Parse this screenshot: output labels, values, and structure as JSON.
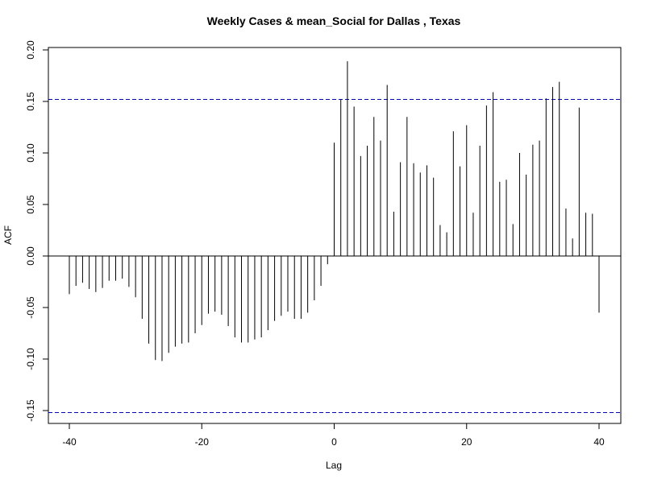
{
  "chart_data": {
    "type": "bar",
    "title": "Weekly Cases & mean_Social for Dallas , Texas",
    "xlabel": "Lag",
    "ylabel": "ACF",
    "xlim": [
      -40,
      40
    ],
    "ylim": [
      -0.15,
      0.2
    ],
    "x_ticks": [
      "-40",
      "-20",
      "0",
      "20",
      "40"
    ],
    "y_ticks": [
      "-0.15",
      "-0.10",
      "-0.05",
      "0.00",
      "0.05",
      "0.10",
      "0.15",
      "0.20"
    ],
    "confidence_bound": 0.152,
    "lags": [
      -40,
      -39,
      -38,
      -37,
      -36,
      -35,
      -34,
      -33,
      -32,
      -31,
      -30,
      -29,
      -28,
      -27,
      -26,
      -25,
      -24,
      -23,
      -22,
      -21,
      -20,
      -19,
      -18,
      -17,
      -16,
      -15,
      -14,
      -13,
      -12,
      -11,
      -10,
      -9,
      -8,
      -7,
      -6,
      -5,
      -4,
      -3,
      -2,
      -1,
      0,
      1,
      2,
      3,
      4,
      5,
      6,
      7,
      8,
      9,
      10,
      11,
      12,
      13,
      14,
      15,
      16,
      17,
      18,
      19,
      20,
      21,
      22,
      23,
      24,
      25,
      26,
      27,
      28,
      29,
      30,
      31,
      32,
      33,
      34,
      35,
      36,
      37,
      38,
      39,
      40
    ],
    "values": [
      -0.037,
      -0.029,
      -0.026,
      -0.032,
      -0.035,
      -0.031,
      -0.024,
      -0.024,
      -0.022,
      -0.03,
      -0.04,
      -0.061,
      -0.085,
      -0.101,
      -0.102,
      -0.094,
      -0.088,
      -0.085,
      -0.084,
      -0.075,
      -0.067,
      -0.056,
      -0.054,
      -0.057,
      -0.068,
      -0.079,
      -0.084,
      -0.084,
      -0.081,
      -0.079,
      -0.072,
      -0.063,
      -0.058,
      -0.054,
      -0.061,
      -0.061,
      -0.055,
      -0.043,
      -0.029,
      -0.008,
      0.11,
      0.152,
      0.189,
      0.145,
      0.097,
      0.107,
      0.135,
      0.112,
      0.166,
      0.043,
      0.091,
      0.135,
      0.09,
      0.081,
      0.088,
      0.076,
      0.03,
      0.023,
      0.121,
      0.087,
      0.127,
      0.042,
      0.107,
      0.146,
      0.159,
      0.072,
      0.074,
      0.031,
      0.1,
      0.079,
      0.108,
      0.112,
      0.153,
      0.164,
      0.169,
      0.046,
      0.017,
      0.144,
      0.042,
      0.041,
      -0.055
    ]
  },
  "colors": {
    "bars": "#000000",
    "confidence_line": "#0000cc",
    "axis": "#000000"
  }
}
